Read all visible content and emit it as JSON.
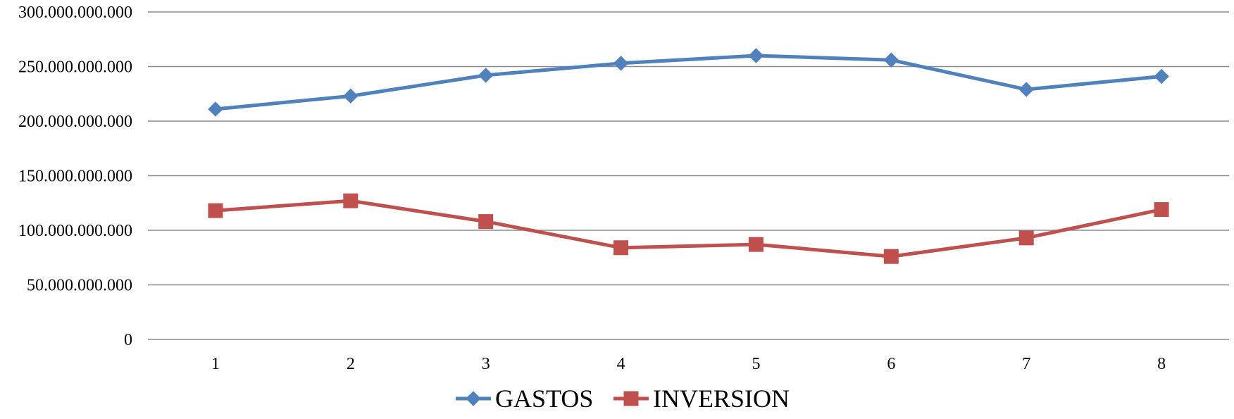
{
  "chart_data": {
    "type": "line",
    "title": "",
    "xlabel": "",
    "ylabel": "",
    "categories": [
      "1",
      "2",
      "3",
      "4",
      "5",
      "6",
      "7",
      "8"
    ],
    "y_tick_labels": [
      "0",
      "50.000.000.000",
      "100.000.000.000",
      "150.000.000.000",
      "200.000.000.000",
      "250.000.000.000",
      "300.000.000.000"
    ],
    "y_tick_values": [
      0,
      50000000000,
      100000000000,
      150000000000,
      200000000000,
      250000000000,
      300000000000
    ],
    "ylim": [
      0,
      300000000000
    ],
    "grid": true,
    "legend_position": "bottom",
    "series": [
      {
        "name": "GASTOS",
        "color": "#4F81BD",
        "marker": "diamond",
        "values": [
          211000000000,
          223000000000,
          242000000000,
          253000000000,
          260000000000,
          256000000000,
          229000000000,
          241000000000
        ]
      },
      {
        "name": "INVERSION",
        "color": "#C0504D",
        "marker": "square",
        "values": [
          118000000000,
          127000000000,
          108000000000,
          84000000000,
          87000000000,
          76000000000,
          93000000000,
          119000000000
        ]
      }
    ]
  }
}
